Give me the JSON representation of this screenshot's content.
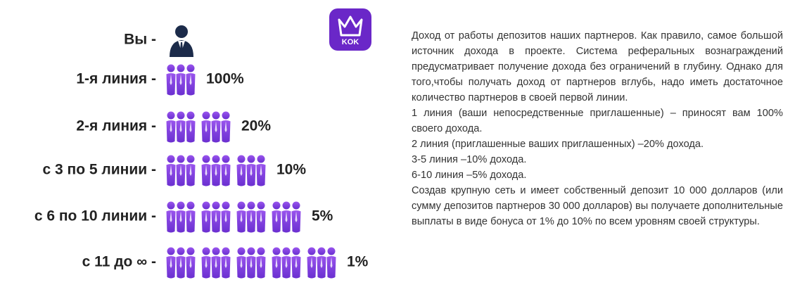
{
  "logo": {
    "text": "KOK"
  },
  "levels": [
    {
      "label": "Вы -"
    },
    {
      "label": "1-я линия -",
      "groups": 1,
      "percent": "100%"
    },
    {
      "label": "2-я линия -",
      "groups": 2,
      "percent": "20%"
    },
    {
      "label": "с 3 по 5 линии -",
      "groups": 3,
      "percent": "10%"
    },
    {
      "label": "с 6 по 10 линии -",
      "groups": 4,
      "percent": "5%"
    },
    {
      "label": "с 11 до ∞ -",
      "groups": 5,
      "percent": "1%"
    }
  ],
  "description": [
    "Доход от работы депозитов наших партнеров. Как правило, самое большой источник дохода в проекте. Система реферальных вознаграждений предусматривает получение дохода без ограничений в глубину. Однако для того,чтобы получать доход от партнеров вглубь, надо иметь достаточное количество партнеров в своей первой линии.",
    "1 линия (ваши непосредственные приглашенные) – приносят вам 100% своего дохода.",
    "2 линия (приглашенные ваших приглашенных) –20% дохода.",
    "3-5 линия –10% дохода.",
    "6-10 линия –5% дохода.",
    "Создав крупную сеть и имеет собственный депозит 10 000 долларов (или сумму депозитов партнеров 30 000 долларов) вы получаете дополнительные выплаты в виде бонуса от 1% до 10% по всем уровням своей структуры."
  ]
}
